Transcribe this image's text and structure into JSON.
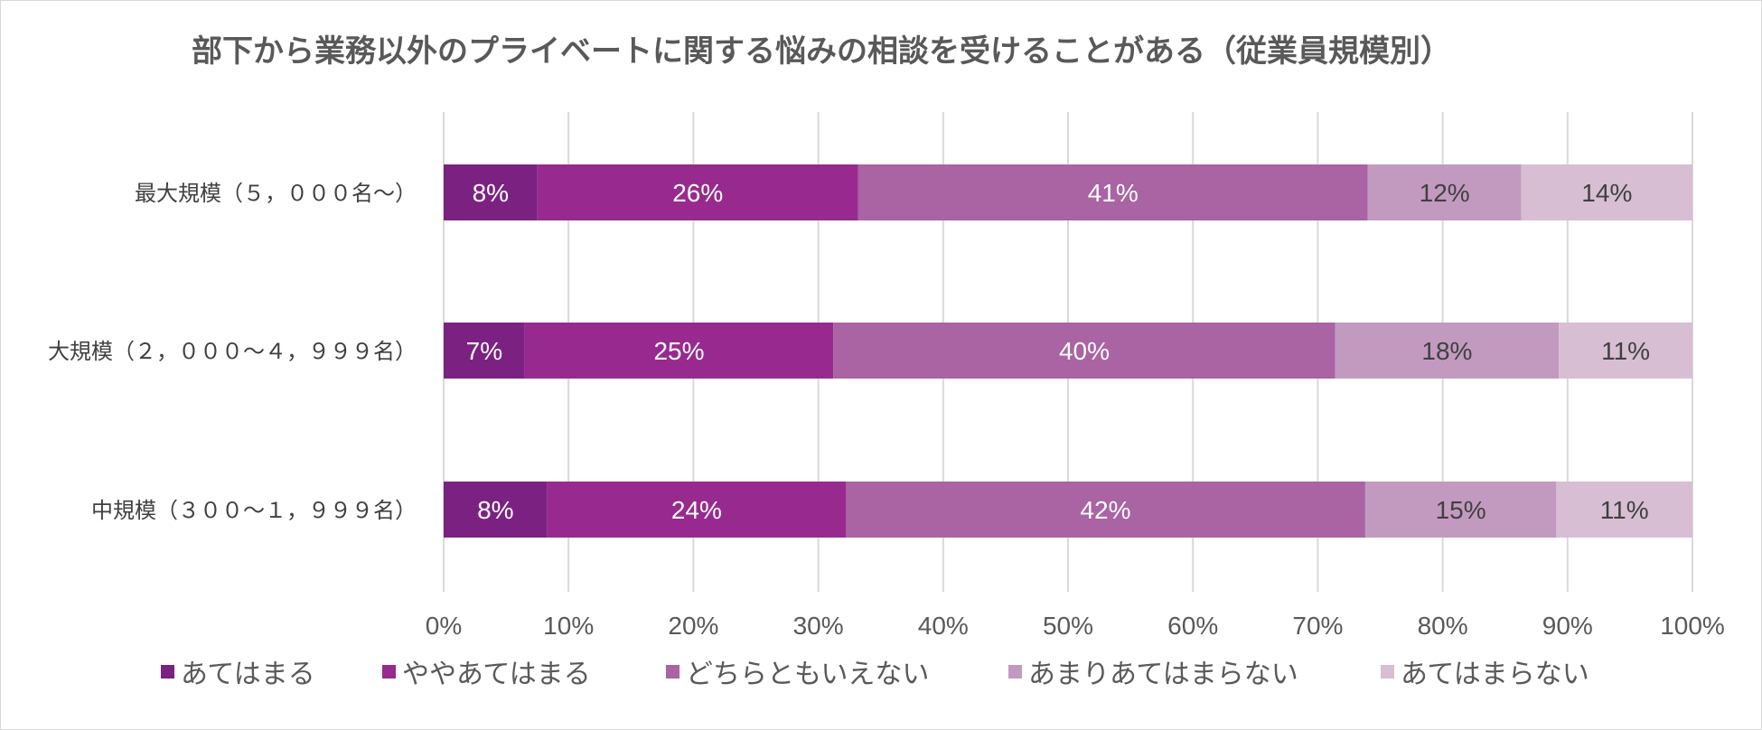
{
  "chart_data": {
    "type": "bar",
    "orientation": "horizontal",
    "stacked": true,
    "percent_stacked": true,
    "title": "部下から業務以外のプライベートに関する悩みの相談を受けることがある（従業員規模別）",
    "categories": [
      "最大規模（５，０００名～）",
      "大規模（２，０００～４，９９９名）",
      "中規模（３００～１，９９９名）"
    ],
    "series": [
      {
        "name": "あてはまる",
        "color": "#7b2182",
        "label_color": "#ffffff",
        "values": [
          7.5,
          6.5,
          8.3
        ],
        "labels": [
          "8%",
          "7%",
          "8%"
        ]
      },
      {
        "name": "ややあてはまる",
        "color": "#982a8f",
        "label_color": "#ffffff",
        "values": [
          25.7,
          24.7,
          23.9
        ],
        "labels": [
          "26%",
          "25%",
          "24%"
        ]
      },
      {
        "name": "どちらともいえない",
        "color": "#aa63a3",
        "label_color": "#ffffff",
        "values": [
          40.8,
          40.2,
          41.6
        ],
        "labels": [
          "41%",
          "40%",
          "42%"
        ]
      },
      {
        "name": "あまりあてはまらない",
        "color": "#c39abf",
        "label_color": "#404040",
        "values": [
          12.3,
          17.9,
          15.3
        ],
        "labels": [
          "12%",
          "18%",
          "15%"
        ]
      },
      {
        "name": "あてはまらない",
        "color": "#d7bed3",
        "label_color": "#404040",
        "values": [
          13.7,
          10.7,
          10.9
        ],
        "labels": [
          "14%",
          "11%",
          "11%"
        ]
      }
    ],
    "xlim": [
      0,
      100
    ],
    "x_ticks": [
      "0%",
      "10%",
      "20%",
      "30%",
      "40%",
      "50%",
      "60%",
      "70%",
      "80%",
      "90%",
      "100%"
    ],
    "grid": "vertical",
    "grid_color": "#d9d9d9",
    "legend_position": "bottom"
  }
}
